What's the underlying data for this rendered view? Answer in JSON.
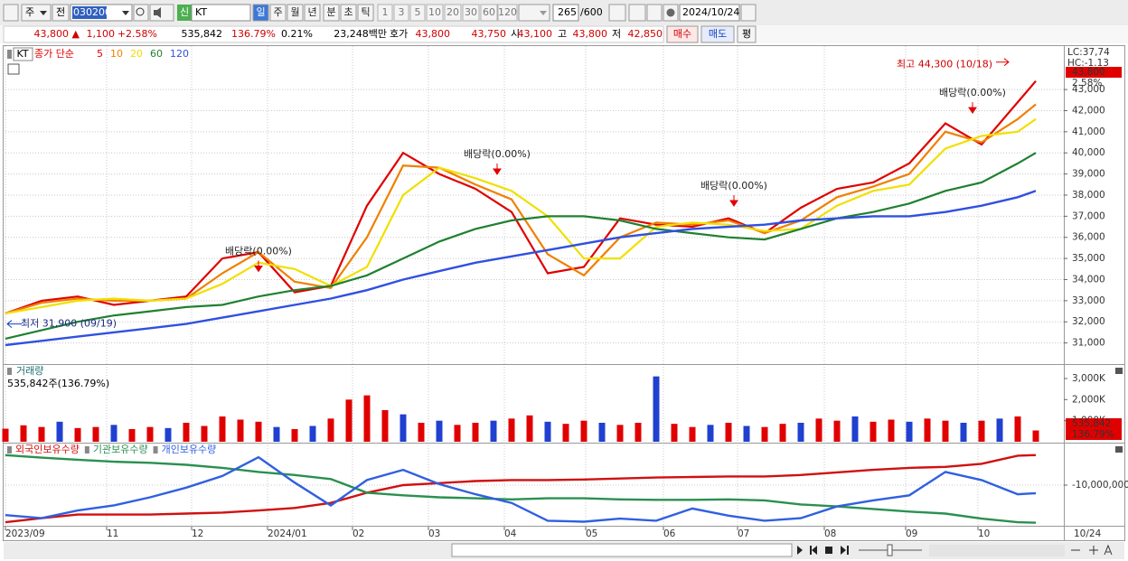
{
  "toolbar": {
    "market": "주",
    "compare": "전",
    "code": "030200",
    "name_badge": "신",
    "name": "KT",
    "periods": [
      "일",
      "주",
      "월",
      "년",
      "분",
      "초",
      "틱"
    ],
    "intervals": [
      "1",
      "3",
      "5",
      "10",
      "20",
      "30",
      "60",
      "120"
    ],
    "count": "265",
    "count_max": "/600",
    "date": "2024/10/24"
  },
  "quote": {
    "price": "43,800 ▲",
    "change": "1,100",
    "change_pct": "+2.58%",
    "volume": "535,842",
    "volume_ratio": "136.79%",
    "turnover": "0.21%",
    "amount": "23,248백만",
    "bid_ask_label": "호가",
    "ask": "43,800",
    "bid": "43,750",
    "open_label": "시",
    "open": "43,100",
    "high_label": "고",
    "high": "43,800",
    "low_label": "저",
    "low": "42,850",
    "buy": "매수",
    "sell": "매도",
    "avg": "평"
  },
  "chart_data": [
    {
      "type": "line",
      "stock_label": "KT",
      "legend_title": "종가 단순",
      "x": [
        0,
        2,
        4,
        6,
        8,
        10,
        12,
        14,
        16,
        18,
        20,
        22,
        24,
        26,
        28,
        30,
        32,
        34,
        36,
        38,
        40,
        42,
        44,
        46,
        48,
        50,
        52,
        54,
        56,
        57
      ],
      "xlim": [
        0,
        57
      ],
      "ylim": [
        30000,
        45100
      ],
      "yticks": [
        {
          "value": 31000,
          "label": "31,000"
        },
        {
          "value": 32000,
          "label": "32,000"
        },
        {
          "value": 33000,
          "label": "33,000"
        },
        {
          "value": 34000,
          "label": "34,000"
        },
        {
          "value": 35000,
          "label": "35,000"
        },
        {
          "value": 36000,
          "label": "36,000"
        },
        {
          "value": 37000,
          "label": "37,000"
        },
        {
          "value": 38000,
          "label": "38,000"
        },
        {
          "value": 39000,
          "label": "39,000"
        },
        {
          "value": 40000,
          "label": "40,000"
        },
        {
          "value": 41000,
          "label": "41,000"
        },
        {
          "value": 42000,
          "label": "42,000"
        },
        {
          "value": 43000,
          "label": "43,000"
        }
      ],
      "grid": true,
      "series": [
        {
          "name": "5",
          "color": "#e00000",
          "values": [
            32400,
            33000,
            33200,
            32800,
            33000,
            33200,
            35000,
            35300,
            33400,
            33700,
            37500,
            40000,
            39000,
            38300,
            37200,
            34300,
            34600,
            36900,
            36600,
            36500,
            36900,
            36200,
            37400,
            38300,
            38600,
            39500,
            41400,
            40400,
            42400,
            43400
          ]
        },
        {
          "name": "10",
          "color": "#f08000",
          "values": [
            32400,
            32900,
            33100,
            33000,
            33000,
            33100,
            34300,
            35300,
            33900,
            33600,
            36000,
            39400,
            39300,
            38500,
            37800,
            35200,
            34200,
            36000,
            36700,
            36600,
            36800,
            36200,
            36800,
            37900,
            38400,
            39000,
            41000,
            40500,
            41600,
            42300
          ]
        },
        {
          "name": "20",
          "color": "#f0e000",
          "values": [
            32400,
            32700,
            33000,
            33100,
            33000,
            33100,
            33800,
            34800,
            34500,
            33700,
            34600,
            38000,
            39300,
            38800,
            38200,
            37000,
            35000,
            35000,
            36500,
            36700,
            36600,
            36300,
            36400,
            37500,
            38200,
            38500,
            40200,
            40800,
            41000,
            41600
          ]
        },
        {
          "name": "60",
          "color": "#208030",
          "values": [
            31200,
            31600,
            32000,
            32300,
            32500,
            32700,
            32800,
            33200,
            33500,
            33700,
            34200,
            35000,
            35800,
            36400,
            36800,
            37000,
            37000,
            36800,
            36400,
            36200,
            36000,
            35900,
            36400,
            36900,
            37200,
            37600,
            38200,
            38600,
            39500,
            40000
          ]
        },
        {
          "name": "120",
          "color": "#3050e0",
          "values": [
            30900,
            31100,
            31300,
            31500,
            31700,
            31900,
            32200,
            32500,
            32800,
            33100,
            33500,
            34000,
            34400,
            34800,
            35100,
            35400,
            35700,
            36000,
            36200,
            36400,
            36500,
            36600,
            36800,
            36900,
            37000,
            37000,
            37200,
            37500,
            37900,
            38200
          ]
        }
      ],
      "annotations": [
        {
          "text": "최고 44,300 (10/18)",
          "x": 55.7,
          "y": 44300
        },
        {
          "text": "최저 31,900 (09/19)",
          "x": 0,
          "y": 31900
        },
        {
          "text": "배당락(0.00%)",
          "x": 14,
          "y": 34300
        },
        {
          "text": "배당락(0.00%)",
          "x": 27.2,
          "y": 38900
        },
        {
          "text": "배당락(0.00%)",
          "x": 40.3,
          "y": 37400
        },
        {
          "text": "배당락(0.00%)",
          "x": 53.5,
          "y": 41800
        }
      ],
      "side_labels": [
        "LC:37,74",
        "HC:-1.13",
        "43,800",
        "2.58%"
      ]
    },
    {
      "type": "bar",
      "title": "거래량",
      "header": "535,842주(136.79%)",
      "x": [
        0,
        1,
        2,
        3,
        4,
        5,
        6,
        7,
        8,
        9,
        10,
        11,
        12,
        13,
        14,
        15,
        16,
        17,
        18,
        19,
        20,
        21,
        22,
        23,
        24,
        25,
        26,
        27,
        28,
        29,
        30,
        31,
        32,
        33,
        34,
        35,
        36,
        37,
        38,
        39,
        40,
        41,
        42,
        43,
        44,
        45,
        46,
        47,
        48,
        49,
        50,
        51,
        52,
        53,
        54,
        55,
        56,
        57
      ],
      "xlim": [
        0,
        57
      ],
      "values": [
        620000,
        780000,
        700000,
        950000,
        650000,
        700000,
        800000,
        600000,
        700000,
        650000,
        900000,
        750000,
        1200000,
        1050000,
        950000,
        700000,
        600000,
        750000,
        1100000,
        2000000,
        2200000,
        1500000,
        1300000,
        900000,
        1000000,
        800000,
        900000,
        1000000,
        1100000,
        1250000,
        950000,
        850000,
        1000000,
        900000,
        800000,
        900000,
        3100000,
        850000,
        700000,
        800000,
        900000,
        750000,
        700000,
        850000,
        900000,
        1100000,
        1000000,
        1200000,
        950000,
        1050000,
        950000,
        1100000,
        1000000,
        900000,
        1000000,
        1100000,
        1200000,
        535842
      ],
      "colors": [
        "#e00000",
        "#e00000",
        "#e00000",
        "#2040d0",
        "#e00000",
        "#e00000",
        "#2040d0",
        "#e00000",
        "#e00000",
        "#2040d0",
        "#e00000",
        "#e00000",
        "#e00000",
        "#e00000",
        "#e00000",
        "#2040d0",
        "#e00000",
        "#2040d0",
        "#e00000",
        "#e00000",
        "#e00000",
        "#e00000",
        "#2040d0",
        "#e00000",
        "#2040d0",
        "#e00000",
        "#e00000",
        "#2040d0",
        "#e00000",
        "#e00000",
        "#2040d0",
        "#e00000",
        "#e00000",
        "#2040d0",
        "#e00000",
        "#e00000",
        "#2040d0",
        "#e00000",
        "#e00000",
        "#2040d0",
        "#e00000",
        "#2040d0",
        "#e00000",
        "#e00000",
        "#2040d0",
        "#e00000",
        "#e00000",
        "#2040d0",
        "#e00000",
        "#e00000",
        "#2040d0",
        "#e00000",
        "#e00000",
        "#2040d0",
        "#e00000",
        "#2040d0",
        "#e00000",
        "#e00000"
      ],
      "ylim": [
        0,
        3600000
      ],
      "yticks": [
        {
          "value": 1000000,
          "label": "1,000K"
        },
        {
          "value": 2000000,
          "label": "2,000K"
        },
        {
          "value": 3000000,
          "label": "3,000K"
        }
      ],
      "side_labels": [
        "535,842",
        "136.79%"
      ]
    },
    {
      "type": "line",
      "x": [
        0,
        2,
        4,
        6,
        8,
        10,
        12,
        14,
        16,
        18,
        20,
        22,
        24,
        26,
        28,
        30,
        32,
        34,
        36,
        38,
        40,
        42,
        44,
        46,
        48,
        50,
        52,
        54,
        56,
        57
      ],
      "xlim": [
        0,
        57
      ],
      "ylim": [
        -18000000,
        -2000000
      ],
      "yticks": [
        {
          "value": -10000000,
          "label": "-10,000,000"
        }
      ],
      "series": [
        {
          "name": "외국인보유수량",
          "color": "#d01010",
          "values": [
            -17300000,
            -16500000,
            -15800000,
            -15800000,
            -15800000,
            -15600000,
            -15400000,
            -15000000,
            -14500000,
            -13500000,
            -11500000,
            -10000000,
            -9600000,
            -9200000,
            -9000000,
            -9000000,
            -8900000,
            -8700000,
            -8500000,
            -8400000,
            -8300000,
            -8300000,
            -8000000,
            -7500000,
            -7000000,
            -6600000,
            -6400000,
            -5800000,
            -4200000,
            -4100000
          ]
        },
        {
          "name": "기관보유수량",
          "color": "#2a9050",
          "values": [
            -4100000,
            -4600000,
            -5000000,
            -5400000,
            -5600000,
            -6000000,
            -6600000,
            -7400000,
            -8000000,
            -8800000,
            -11500000,
            -12000000,
            -12400000,
            -12600000,
            -12800000,
            -12600000,
            -12600000,
            -12800000,
            -12900000,
            -12900000,
            -12800000,
            -13000000,
            -13800000,
            -14200000,
            -14700000,
            -15200000,
            -15600000,
            -16600000,
            -17300000,
            -17400000
          ]
        },
        {
          "name": "개인보유수량",
          "color": "#3060e0",
          "values": [
            -15900000,
            -16500000,
            -15000000,
            -14000000,
            -12400000,
            -10500000,
            -8200000,
            -4500000,
            -9500000,
            -14000000,
            -9000000,
            -7000000,
            -9800000,
            -11800000,
            -13500000,
            -17000000,
            -17200000,
            -16600000,
            -17000000,
            -14600000,
            -16000000,
            -17000000,
            -16500000,
            -14200000,
            -13000000,
            -12000000,
            -7400000,
            -9000000,
            -11800000,
            -11600000
          ]
        }
      ],
      "xticks": [
        {
          "value": 0,
          "label": "2023/09"
        },
        {
          "value": 5.6,
          "label": "11"
        },
        {
          "value": 10.3,
          "label": "12"
        },
        {
          "value": 14.5,
          "label": "2024/01"
        },
        {
          "value": 19.2,
          "label": "02"
        },
        {
          "value": 23.4,
          "label": "03"
        },
        {
          "value": 27.6,
          "label": "04"
        },
        {
          "value": 32.1,
          "label": "05"
        },
        {
          "value": 36.4,
          "label": "06"
        },
        {
          "value": 40.5,
          "label": "07"
        },
        {
          "value": 45.3,
          "label": "08"
        },
        {
          "value": 49.8,
          "label": "09"
        },
        {
          "value": 53.8,
          "label": "10"
        }
      ],
      "x_end_label": "10/24"
    }
  ]
}
